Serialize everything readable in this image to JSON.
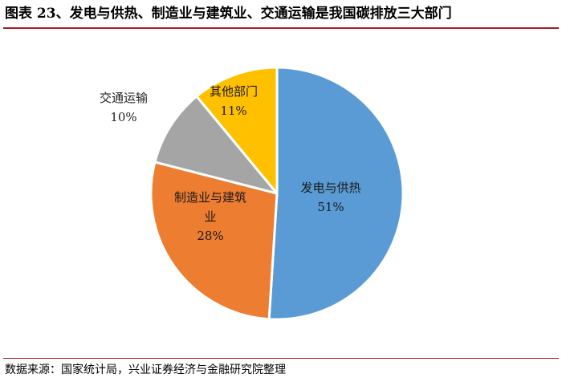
{
  "header": {
    "title": "图表 23、发电与供热、制造业与建筑业、交通运输是我国碳排放三大部门"
  },
  "footer": {
    "source": "数据来源：国家统计局，兴业证券经济与金融研究院整理"
  },
  "chart_data": {
    "type": "pie",
    "title": "",
    "slices": [
      {
        "label_lines": [
          "发电与供热"
        ],
        "value": 51,
        "value_label": "51%",
        "color": "#5b9bd5"
      },
      {
        "label_lines": [
          "制造业与建筑",
          "业"
        ],
        "value": 28,
        "value_label": "28%",
        "color": "#ed7d31"
      },
      {
        "label_lines": [
          "交通运输"
        ],
        "value": 10,
        "value_label": "10%",
        "color": "#a5a5a5"
      },
      {
        "label_lines": [
          "其他部门"
        ],
        "value": 11,
        "value_label": "11%",
        "color": "#ffc000"
      }
    ],
    "legend": "none",
    "start": "top",
    "direction": "clockwise"
  }
}
